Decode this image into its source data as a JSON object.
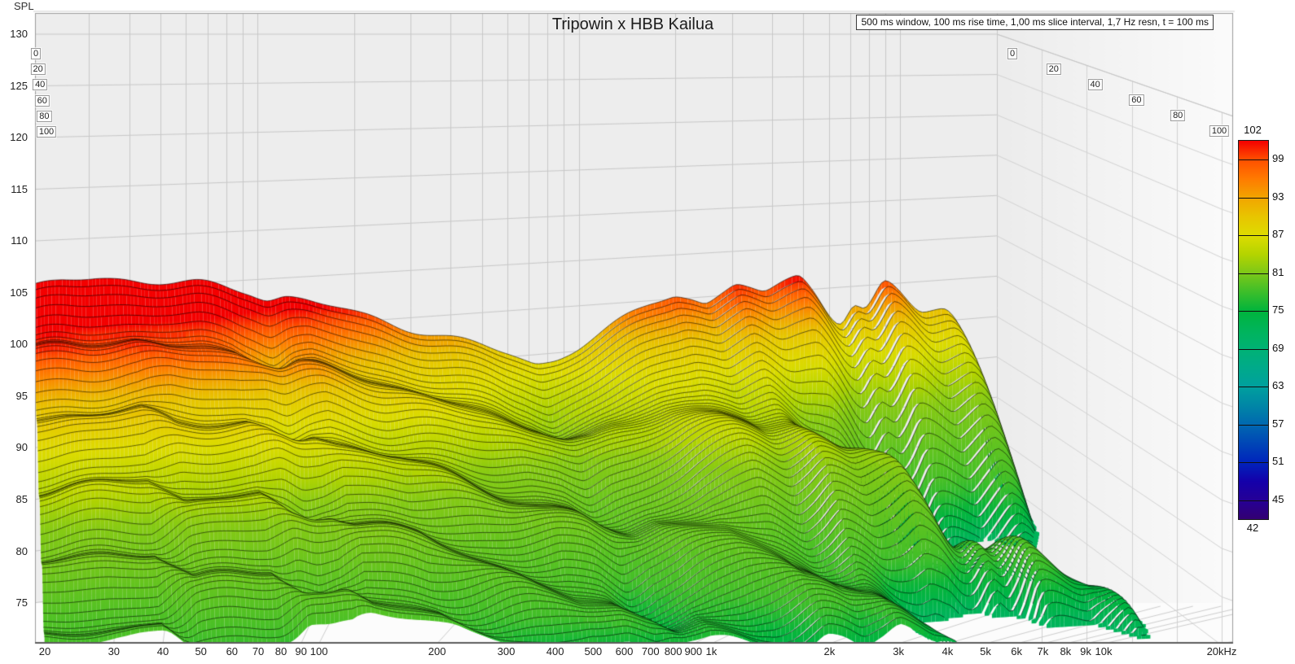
{
  "title": "Tripowin x HBB Kailua",
  "settings_note": "500 ms window, 100 ms rise time, 1,00 ms slice interval, 1,7 Hz resn, t = 100 ms",
  "axes": {
    "spl_label": "SPL",
    "spl_ticks": [
      130,
      125,
      120,
      115,
      110,
      105,
      100,
      95,
      90,
      85,
      80,
      75
    ],
    "freq_ticks": [
      {
        "f": 20,
        "label": "20"
      },
      {
        "f": 30,
        "label": "30"
      },
      {
        "f": 40,
        "label": "40"
      },
      {
        "f": 50,
        "label": "50"
      },
      {
        "f": 60,
        "label": "60"
      },
      {
        "f": 70,
        "label": "70"
      },
      {
        "f": 80,
        "label": "80"
      },
      {
        "f": 90,
        "label": "90"
      },
      {
        "f": 100,
        "label": "100"
      },
      {
        "f": 200,
        "label": "200"
      },
      {
        "f": 300,
        "label": "300"
      },
      {
        "f": 400,
        "label": "400"
      },
      {
        "f": 500,
        "label": "500"
      },
      {
        "f": 600,
        "label": "600"
      },
      {
        "f": 700,
        "label": "700"
      },
      {
        "f": 800,
        "label": "800"
      },
      {
        "f": 900,
        "label": "900"
      },
      {
        "f": 1000,
        "label": "1k"
      },
      {
        "f": 2000,
        "label": "2k"
      },
      {
        "f": 3000,
        "label": "3k"
      },
      {
        "f": 4000,
        "label": "4k"
      },
      {
        "f": 5000,
        "label": "5k"
      },
      {
        "f": 6000,
        "label": "6k"
      },
      {
        "f": 7000,
        "label": "7k"
      },
      {
        "f": 8000,
        "label": "8k"
      },
      {
        "f": 9000,
        "label": "9k"
      },
      {
        "f": 10000,
        "label": "10k"
      },
      {
        "f": 20000,
        "label": "20kHz"
      }
    ],
    "time_ticks_ms": [
      "0",
      "20",
      "40",
      "60",
      "80",
      "100"
    ]
  },
  "colorbar": {
    "top_label": "102",
    "bottom_label": "42",
    "side_labels": [
      "99",
      "93",
      "87",
      "81",
      "75",
      "69",
      "63",
      "57",
      "51",
      "45"
    ],
    "range": [
      42,
      102
    ],
    "stops": [
      {
        "v": 102,
        "c": "#f40000"
      },
      {
        "v": 99,
        "c": "#ff4f00"
      },
      {
        "v": 96,
        "c": "#ff7a00"
      },
      {
        "v": 93,
        "c": "#f2a400"
      },
      {
        "v": 90,
        "c": "#e8c400"
      },
      {
        "v": 87,
        "c": "#dedc00"
      },
      {
        "v": 84,
        "c": "#b4d400"
      },
      {
        "v": 81,
        "c": "#7cc818"
      },
      {
        "v": 78,
        "c": "#3cbe2a"
      },
      {
        "v": 75,
        "c": "#00b43c"
      },
      {
        "v": 72,
        "c": "#00b45a"
      },
      {
        "v": 69,
        "c": "#00b274"
      },
      {
        "v": 66,
        "c": "#00aa8a"
      },
      {
        "v": 63,
        "c": "#00a09e"
      },
      {
        "v": 60,
        "c": "#0086a6"
      },
      {
        "v": 57,
        "c": "#0068b0"
      },
      {
        "v": 54,
        "c": "#0046b6"
      },
      {
        "v": 51,
        "c": "#0024bc"
      },
      {
        "v": 48,
        "c": "#1400aa"
      },
      {
        "v": 45,
        "c": "#250096"
      },
      {
        "v": 42,
        "c": "#330072"
      }
    ]
  },
  "chart_data": {
    "type": "waterfall-3d-surface",
    "title": "Tripowin x HBB Kailua",
    "window_ms": 500,
    "rise_time_ms": 100,
    "slice_interval_ms": "1,00",
    "resolution_hz": "1,7",
    "time_extent_ms": 100,
    "freq_range_hz": [
      20,
      20000
    ],
    "spl_axis_range_db": [
      75,
      130
    ],
    "spl_color_range_db": [
      42,
      102
    ],
    "spl_floor_db": 75,
    "fr_points": [
      {
        "f": 20,
        "spl": 105.6,
        "decay": 25,
        "beat_depth": 2.0,
        "beat_cycles": 5.0
      },
      {
        "f": 25,
        "spl": 105.9,
        "decay": 25,
        "beat_depth": 2.0,
        "beat_cycles": 5.0
      },
      {
        "f": 32,
        "spl": 106.0,
        "decay": 25,
        "beat_depth": 2.0,
        "beat_cycles": 5.0
      },
      {
        "f": 40,
        "spl": 105.8,
        "decay": 24.5,
        "beat_depth": 2.0,
        "beat_cycles": 5.0
      },
      {
        "f": 50,
        "spl": 105.4,
        "decay": 24,
        "beat_depth": 2.0,
        "beat_cycles": 4.5
      },
      {
        "f": 65,
        "spl": 104.9,
        "decay": 23,
        "beat_depth": 2.0,
        "beat_cycles": 4.5
      },
      {
        "f": 80,
        "spl": 104.3,
        "decay": 22,
        "beat_depth": 2.2,
        "beat_cycles": 4.5
      },
      {
        "f": 95,
        "spl": 103.8,
        "decay": 21.5,
        "beat_depth": 2.8,
        "beat_cycles": 4.2
      },
      {
        "f": 108,
        "spl": 102.9,
        "decay": 21,
        "beat_depth": 3.2,
        "beat_cycles": 4.2
      },
      {
        "f": 122,
        "spl": 103.2,
        "decay": 21,
        "beat_depth": 2.6,
        "beat_cycles": 4.2
      },
      {
        "f": 140,
        "spl": 102.7,
        "decay": 20.5,
        "beat_depth": 2.2,
        "beat_cycles": 4.0
      },
      {
        "f": 175,
        "spl": 101.6,
        "decay": 20,
        "beat_depth": 2.2,
        "beat_cycles": 4.0
      },
      {
        "f": 210,
        "spl": 100.6,
        "decay": 19.5,
        "beat_depth": 2.2,
        "beat_cycles": 4.0
      },
      {
        "f": 260,
        "spl": 99.6,
        "decay": 19,
        "beat_depth": 2.2,
        "beat_cycles": 3.8
      },
      {
        "f": 320,
        "spl": 98.6,
        "decay": 18.5,
        "beat_depth": 2.2,
        "beat_cycles": 3.6
      },
      {
        "f": 400,
        "spl": 97.5,
        "decay": 18,
        "beat_depth": 2.2,
        "beat_cycles": 3.4
      },
      {
        "f": 500,
        "spl": 96.4,
        "decay": 17,
        "beat_depth": 2.2,
        "beat_cycles": 3.2
      },
      {
        "f": 620,
        "spl": 95.2,
        "decay": 16,
        "beat_depth": 2.4,
        "beat_cycles": 3.2
      },
      {
        "f": 740,
        "spl": 93.9,
        "decay": 16,
        "beat_depth": 3.0,
        "beat_cycles": 3.2
      },
      {
        "f": 850,
        "spl": 94.3,
        "decay": 16.5,
        "beat_depth": 2.6,
        "beat_cycles": 3.0
      },
      {
        "f": 1000,
        "spl": 95.4,
        "decay": 17,
        "beat_depth": 2.4,
        "beat_cycles": 3.0
      },
      {
        "f": 1200,
        "spl": 96.9,
        "decay": 18,
        "beat_depth": 2.4,
        "beat_cycles": 2.8
      },
      {
        "f": 1450,
        "spl": 98.5,
        "decay": 19,
        "beat_depth": 2.6,
        "beat_cycles": 2.6
      },
      {
        "f": 1700,
        "spl": 99.8,
        "decay": 20.5,
        "beat_depth": 3.0,
        "beat_cycles": 2.4
      },
      {
        "f": 2000,
        "spl": 100.8,
        "decay": 21.5,
        "beat_depth": 3.6,
        "beat_cycles": 2.2
      },
      {
        "f": 2250,
        "spl": 100.0,
        "decay": 21.5,
        "beat_depth": 3.8,
        "beat_cycles": 2.2
      },
      {
        "f": 2500,
        "spl": 99.0,
        "decay": 21.5,
        "beat_depth": 4.0,
        "beat_cycles": 2.2
      },
      {
        "f": 2800,
        "spl": 100.2,
        "decay": 22,
        "beat_depth": 4.4,
        "beat_cycles": 2.1
      },
      {
        "f": 3100,
        "spl": 101.3,
        "decay": 22,
        "beat_depth": 4.8,
        "beat_cycles": 2.0
      },
      {
        "f": 3450,
        "spl": 100.6,
        "decay": 22.5,
        "beat_depth": 5.4,
        "beat_cycles": 2.0
      },
      {
        "f": 3800,
        "spl": 99.8,
        "decay": 23,
        "beat_depth": 6.0,
        "beat_cycles": 2.0
      },
      {
        "f": 4300,
        "spl": 100.9,
        "decay": 23.5,
        "beat_depth": 8.0,
        "beat_cycles": 1.9
      },
      {
        "f": 4900,
        "spl": 101.9,
        "decay": 24,
        "beat_depth": 11.0,
        "beat_cycles": 1.75
      },
      {
        "f": 5500,
        "spl": 99.6,
        "decay": 25,
        "beat_depth": 13.0,
        "beat_cycles": 1.65
      },
      {
        "f": 6100,
        "spl": 96.8,
        "decay": 26,
        "beat_depth": 14.5,
        "beat_cycles": 1.6
      },
      {
        "f": 6600,
        "spl": 95.5,
        "decay": 26,
        "beat_depth": 15.0,
        "beat_cycles": 1.55
      },
      {
        "f": 7200,
        "spl": 98.4,
        "decay": 26,
        "beat_depth": 15.0,
        "beat_cycles": 1.5
      },
      {
        "f": 7800,
        "spl": 96.5,
        "decay": 26.5,
        "beat_depth": 15.5,
        "beat_cycles": 1.5
      },
      {
        "f": 8400,
        "spl": 98.6,
        "decay": 26.5,
        "beat_depth": 16.0,
        "beat_cycles": 1.45
      },
      {
        "f": 8900,
        "spl": 100.5,
        "decay": 26,
        "beat_depth": 16.0,
        "beat_cycles": 1.38
      },
      {
        "f": 9900,
        "spl": 99.0,
        "decay": 26,
        "beat_depth": 15.5,
        "beat_cycles": 1.33
      },
      {
        "f": 10800,
        "spl": 97.3,
        "decay": 25.5,
        "beat_depth": 15.0,
        "beat_cycles": 1.3
      },
      {
        "f": 11600,
        "spl": 96.2,
        "decay": 25,
        "beat_depth": 15.0,
        "beat_cycles": 1.28
      },
      {
        "f": 12800,
        "spl": 96.6,
        "decay": 24,
        "beat_depth": 14.0,
        "beat_cycles": 1.2
      },
      {
        "f": 14000,
        "spl": 96.7,
        "decay": 22.5,
        "beat_depth": 13.0,
        "beat_cycles": 1.15
      },
      {
        "f": 15500,
        "spl": 94.2,
        "decay": 23.5,
        "beat_depth": 12.0,
        "beat_cycles": 1.15
      },
      {
        "f": 17000,
        "spl": 88.5,
        "decay": 26,
        "beat_depth": 10.0,
        "beat_cycles": 1.15
      },
      {
        "f": 18500,
        "spl": 80.5,
        "decay": 29,
        "beat_depth": 8.0,
        "beat_cycles": 1.15
      },
      {
        "f": 20000,
        "spl": 71.5,
        "decay": 32,
        "beat_depth": 6.0,
        "beat_cycles": 1.15
      }
    ]
  }
}
